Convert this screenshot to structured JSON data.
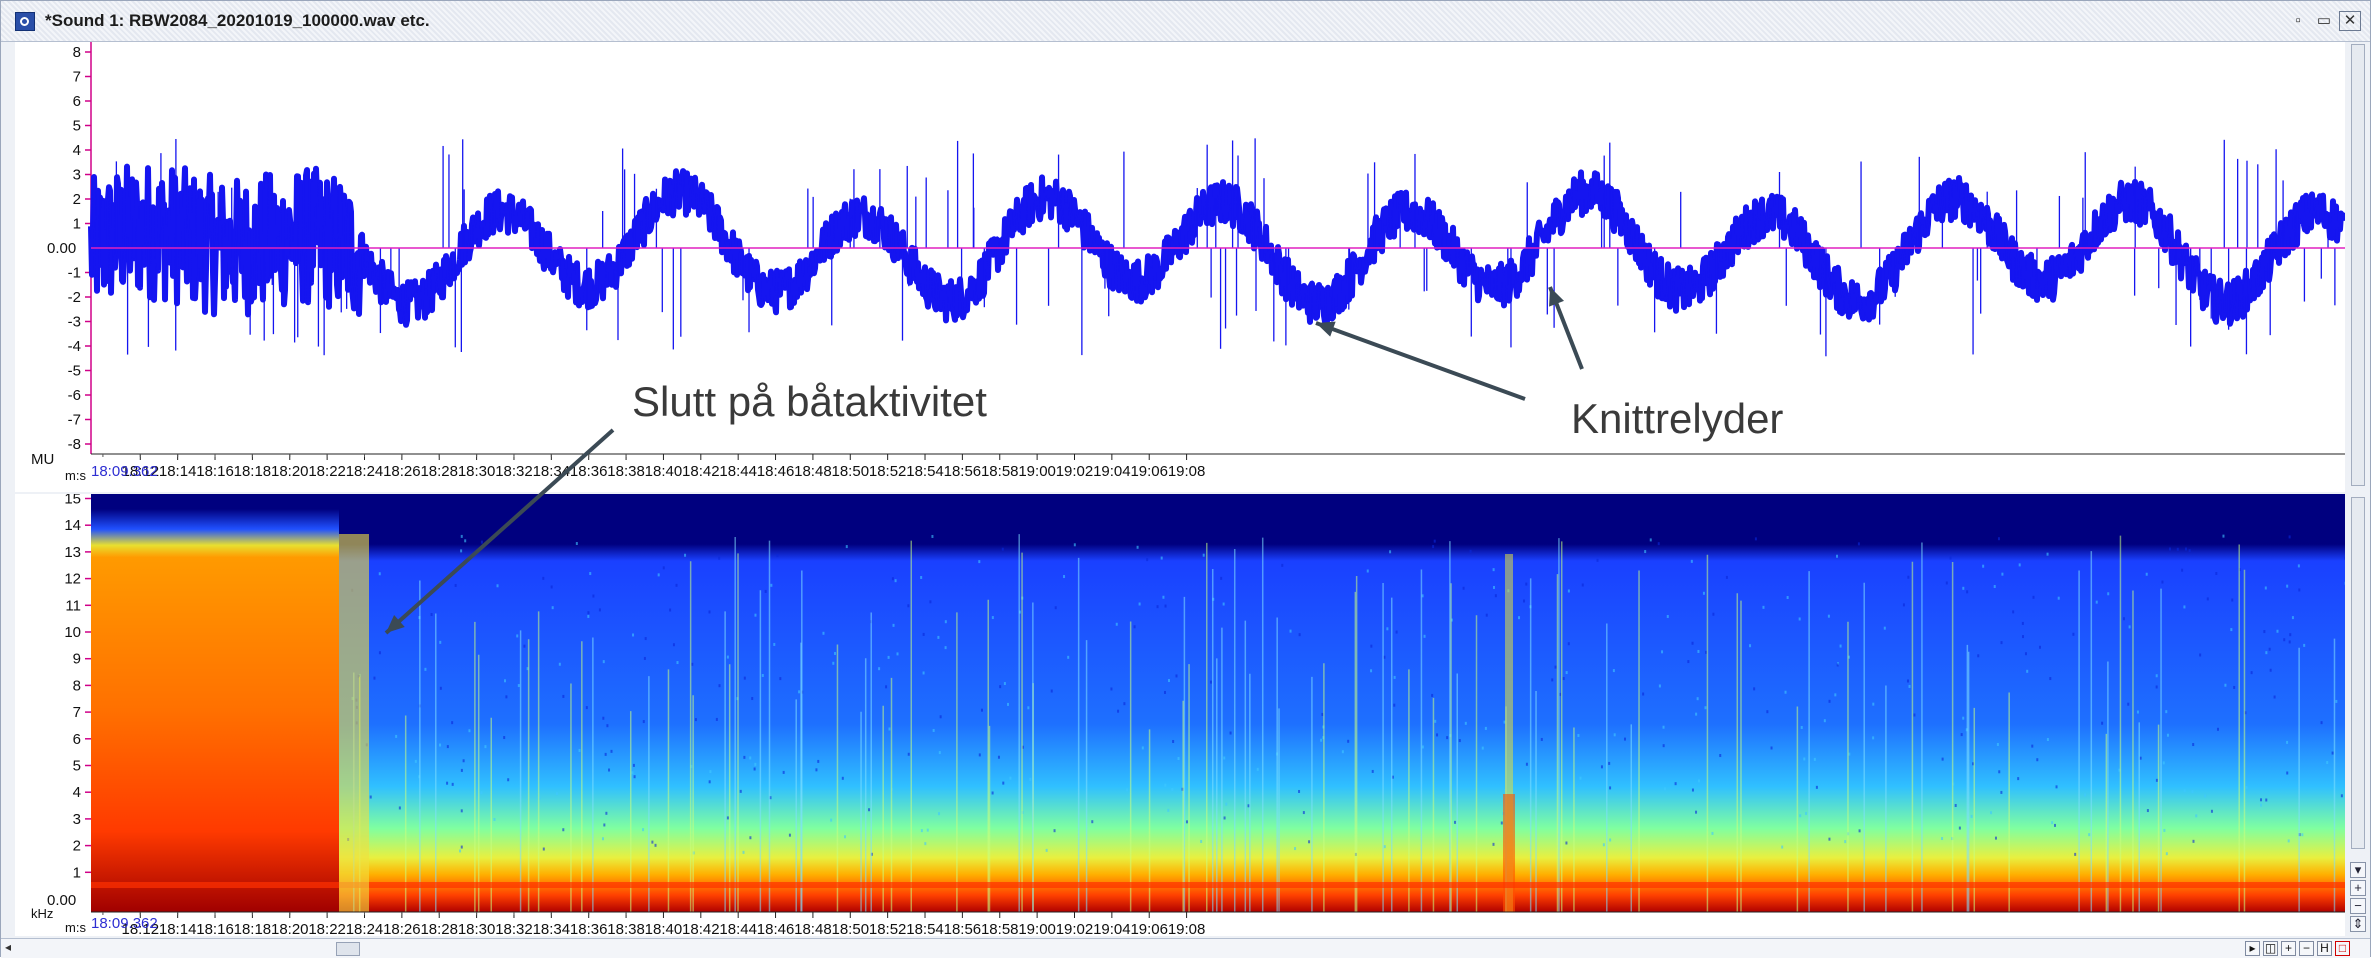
{
  "window": {
    "title": "*Sound 1: RBW2084_20201019_100000.wav etc.",
    "buttons": [
      "▫",
      "▭",
      "✕"
    ]
  },
  "waveform": {
    "unit": "MU",
    "time_unit": "m:s",
    "zero_label": "0.00",
    "y_ticks": [
      "8",
      "7",
      "6",
      "5",
      "4",
      "3",
      "2",
      "1",
      "-1",
      "-2",
      "-3",
      "-4",
      "-5",
      "-6",
      "-7",
      "-8"
    ],
    "colors": {
      "signal": "#1515f0",
      "zero_line": "#e020c0",
      "axis": "#d00088",
      "start_time": "#2e2ed2"
    }
  },
  "spectrogram": {
    "unit": "kHz",
    "time_unit": "m:s",
    "zero_label": "0.00",
    "y_ticks": [
      "15",
      "14",
      "13",
      "12",
      "11",
      "10",
      "9",
      "8",
      "7",
      "6",
      "5",
      "4",
      "3",
      "2",
      "1"
    ],
    "colormap": [
      "#00007f",
      "#0040ff",
      "#00c0ff",
      "#80ff80",
      "#ffd000",
      "#ff5000",
      "#a00000"
    ]
  },
  "time_axis": {
    "start": "18:09.362",
    "labels": [
      "18:12",
      "18:14",
      "18:16",
      "18:18",
      "18:20",
      "18:22",
      "18:24",
      "18:26",
      "18:28",
      "18:30",
      "18:32",
      "18:34",
      "18:36",
      "18:38",
      "18:40",
      "18:42",
      "18:44",
      "18:46",
      "18:48",
      "18:50",
      "18:52",
      "18:54",
      "18:56",
      "18:58",
      "19:00",
      "19:02",
      "19:04",
      "19:06",
      "19:08"
    ]
  },
  "annotations": {
    "boat_end": "Slutt på båtaktivitet",
    "crackle": "Knittrelyder"
  },
  "scrollbar": {
    "left_arrow": "◂",
    "buttons": [
      "▸",
      "◫",
      "+",
      "−",
      "H",
      "□"
    ],
    "side_buttons": [
      "▾",
      "+",
      "−",
      "⇕"
    ]
  }
}
